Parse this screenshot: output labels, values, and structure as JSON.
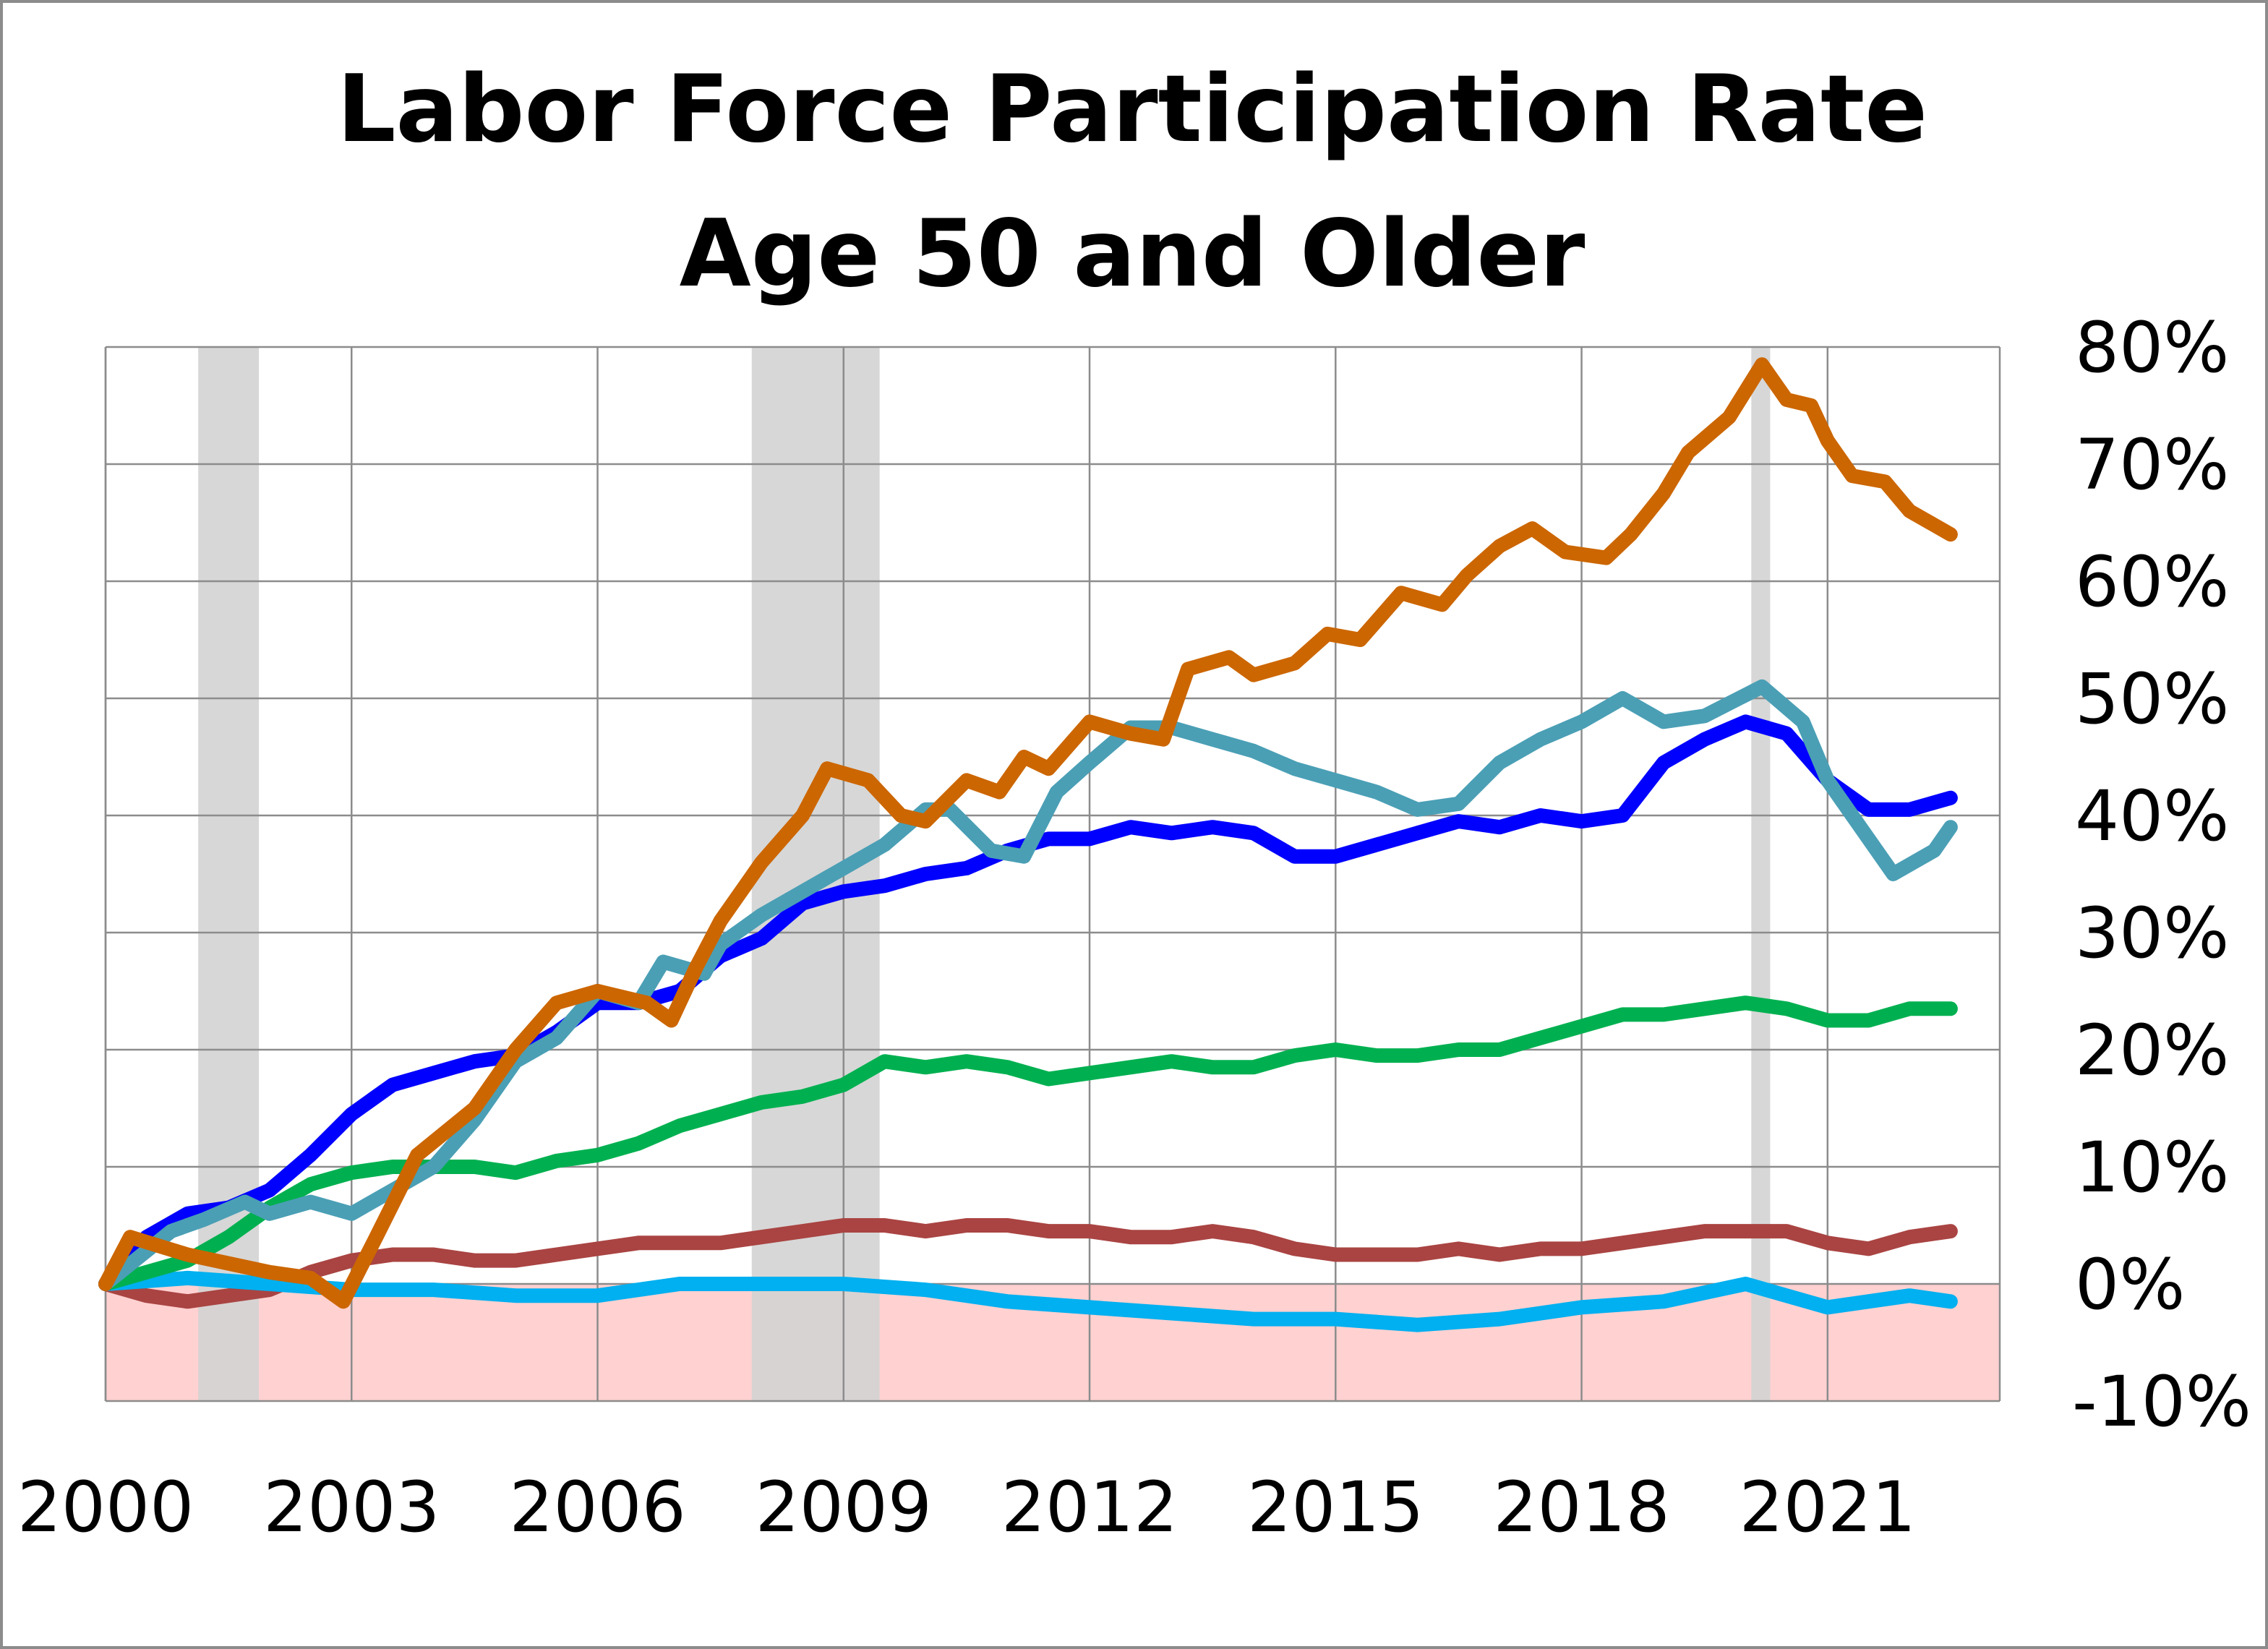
{
  "chart_data": {
    "type": "line",
    "title": [
      "Labor Force Participation Rate",
      "Age 50 and Older"
    ],
    "xlabel": "",
    "ylabel": "",
    "xlim": [
      2000,
      2023.1
    ],
    "ylim": [
      -10,
      80
    ],
    "x_ticks": [
      "2000",
      "2003",
      "2006",
      "2009",
      "2012",
      "2015",
      "2018",
      "2021"
    ],
    "y_ticks": [
      "-10%",
      "0%",
      "10%",
      "20%",
      "30%",
      "40%",
      "50%",
      "60%",
      "70%",
      "80%"
    ],
    "y_axis_side": "right",
    "grid": true,
    "legend": "none",
    "recession_bands": [
      [
        2001.13,
        2001.87
      ],
      [
        2007.88,
        2009.44
      ],
      [
        2020.07,
        2020.3
      ]
    ],
    "recession_color": "#d3d3d3",
    "negative_region_color": "#ffd1d1",
    "series": [
      {
        "color": "#a94442",
        "points": [
          [
            2000,
            0
          ],
          [
            2000.5,
            -1
          ],
          [
            2001,
            -1.5
          ],
          [
            2001.5,
            -1
          ],
          [
            2002,
            -0.5
          ],
          [
            2002.5,
            1
          ],
          [
            2003,
            2
          ],
          [
            2003.5,
            2.5
          ],
          [
            2004,
            2.5
          ],
          [
            2004.5,
            2
          ],
          [
            2005,
            2
          ],
          [
            2005.5,
            2.5
          ],
          [
            2006,
            3
          ],
          [
            2006.5,
            3.5
          ],
          [
            2007,
            3.5
          ],
          [
            2007.5,
            3.5
          ],
          [
            2008,
            4
          ],
          [
            2008.5,
            4.5
          ],
          [
            2009,
            5
          ],
          [
            2009.5,
            5
          ],
          [
            2010,
            4.5
          ],
          [
            2010.5,
            5
          ],
          [
            2011,
            5
          ],
          [
            2011.5,
            4.5
          ],
          [
            2012,
            4.5
          ],
          [
            2012.5,
            4
          ],
          [
            2013,
            4
          ],
          [
            2013.5,
            4.5
          ],
          [
            2014,
            4
          ],
          [
            2014.5,
            3
          ],
          [
            2015,
            2.5
          ],
          [
            2016,
            2.5
          ],
          [
            2016.5,
            3
          ],
          [
            2017,
            2.5
          ],
          [
            2017.5,
            3
          ],
          [
            2018,
            3
          ],
          [
            2018.5,
            3.5
          ],
          [
            2019,
            4
          ],
          [
            2019.5,
            4.5
          ],
          [
            2020,
            4.5
          ],
          [
            2020.5,
            4.5
          ],
          [
            2021,
            3.5
          ],
          [
            2021.5,
            3
          ],
          [
            2022,
            4
          ],
          [
            2022.5,
            4.5
          ]
        ]
      },
      {
        "color": "#00b0f0",
        "points": [
          [
            2000,
            0
          ],
          [
            2001,
            0.5
          ],
          [
            2002,
            0
          ],
          [
            2003,
            -0.5
          ],
          [
            2004,
            -0.5
          ],
          [
            2005,
            -1
          ],
          [
            2006,
            -1
          ],
          [
            2007,
            0
          ],
          [
            2008,
            0
          ],
          [
            2009,
            0
          ],
          [
            2010,
            -0.5
          ],
          [
            2011,
            -1.5
          ],
          [
            2012,
            -2
          ],
          [
            2013,
            -2.5
          ],
          [
            2014,
            -3
          ],
          [
            2015,
            -3
          ],
          [
            2016,
            -3.5
          ],
          [
            2017,
            -3
          ],
          [
            2018,
            -2
          ],
          [
            2019,
            -1.5
          ],
          [
            2020,
            0
          ],
          [
            2020.5,
            -1
          ],
          [
            2021,
            -2
          ],
          [
            2022,
            -1
          ],
          [
            2022.5,
            -1.5
          ]
        ]
      },
      {
        "color": "#00b050",
        "points": [
          [
            2000,
            0
          ],
          [
            2001,
            2
          ],
          [
            2001.5,
            4
          ],
          [
            2002,
            6.5
          ],
          [
            2002.5,
            8.5
          ],
          [
            2003,
            9.5
          ],
          [
            2003.5,
            10
          ],
          [
            2004,
            10
          ],
          [
            2004.5,
            10
          ],
          [
            2005,
            9.5
          ],
          [
            2005.5,
            10.5
          ],
          [
            2006,
            11
          ],
          [
            2006.5,
            12
          ],
          [
            2007,
            13.5
          ],
          [
            2007.5,
            14.5
          ],
          [
            2008,
            15.5
          ],
          [
            2008.5,
            16
          ],
          [
            2009,
            17
          ],
          [
            2009.5,
            19
          ],
          [
            2010,
            18.5
          ],
          [
            2010.5,
            19
          ],
          [
            2011,
            18.5
          ],
          [
            2011.5,
            17.5
          ],
          [
            2012,
            18
          ],
          [
            2012.5,
            18.5
          ],
          [
            2013,
            19
          ],
          [
            2013.5,
            18.5
          ],
          [
            2014,
            18.5
          ],
          [
            2014.5,
            19.5
          ],
          [
            2015,
            20
          ],
          [
            2015.5,
            19.5
          ],
          [
            2016,
            19.5
          ],
          [
            2016.5,
            20
          ],
          [
            2017,
            20
          ],
          [
            2017.5,
            21
          ],
          [
            2018,
            22
          ],
          [
            2018.5,
            23
          ],
          [
            2019,
            23
          ],
          [
            2019.5,
            23.5
          ],
          [
            2020,
            24
          ],
          [
            2020.5,
            23.5
          ],
          [
            2021,
            22.5
          ],
          [
            2021.5,
            22.5
          ],
          [
            2022,
            23.5
          ],
          [
            2022.5,
            23.5
          ]
        ]
      },
      {
        "color": "#0000ff",
        "points": [
          [
            2000,
            0
          ],
          [
            2000.5,
            4
          ],
          [
            2001,
            6
          ],
          [
            2001.5,
            6.5
          ],
          [
            2002,
            8
          ],
          [
            2002.5,
            11
          ],
          [
            2003,
            14.5
          ],
          [
            2003.5,
            17
          ],
          [
            2004,
            18
          ],
          [
            2004.5,
            19
          ],
          [
            2005,
            19.5
          ],
          [
            2005.5,
            21.5
          ],
          [
            2006,
            24
          ],
          [
            2006.5,
            24
          ],
          [
            2007,
            25
          ],
          [
            2007.5,
            28
          ],
          [
            2008,
            29.5
          ],
          [
            2008.5,
            32.5
          ],
          [
            2009,
            33.5
          ],
          [
            2009.5,
            34
          ],
          [
            2010,
            35
          ],
          [
            2010.5,
            35.5
          ],
          [
            2011,
            37
          ],
          [
            2011.5,
            38
          ],
          [
            2012,
            38
          ],
          [
            2012.5,
            39
          ],
          [
            2013,
            38.5
          ],
          [
            2013.5,
            39
          ],
          [
            2014,
            38.5
          ],
          [
            2014.5,
            36.5
          ],
          [
            2015,
            36.5
          ],
          [
            2015.5,
            37.5
          ],
          [
            2016,
            38.5
          ],
          [
            2016.5,
            39.5
          ],
          [
            2017,
            39
          ],
          [
            2017.5,
            40
          ],
          [
            2018,
            39.5
          ],
          [
            2018.5,
            40
          ],
          [
            2019,
            44.5
          ],
          [
            2019.5,
            46.5
          ],
          [
            2020,
            48
          ],
          [
            2020.5,
            47
          ],
          [
            2021,
            43
          ],
          [
            2021.5,
            40.5
          ],
          [
            2022,
            40.5
          ],
          [
            2022.5,
            41.5
          ]
        ]
      },
      {
        "color": "#4a9fb5",
        "points": [
          [
            2000,
            0
          ],
          [
            2000.8,
            4.5
          ],
          [
            2001.2,
            5.5
          ],
          [
            2001.7,
            7
          ],
          [
            2002,
            6
          ],
          [
            2002.5,
            7
          ],
          [
            2003,
            6
          ],
          [
            2003.5,
            8
          ],
          [
            2004,
            10
          ],
          [
            2004.5,
            14
          ],
          [
            2005,
            19
          ],
          [
            2005.5,
            21
          ],
          [
            2006,
            25
          ],
          [
            2006.5,
            24
          ],
          [
            2006.8,
            27.5
          ],
          [
            2007.3,
            26.5
          ],
          [
            2007.5,
            29
          ],
          [
            2008,
            31.5
          ],
          [
            2008.5,
            33.5
          ],
          [
            2009,
            35.5
          ],
          [
            2009.5,
            37.5
          ],
          [
            2010,
            40.5
          ],
          [
            2010.3,
            40.5
          ],
          [
            2010.8,
            37
          ],
          [
            2011.2,
            36.5
          ],
          [
            2011.6,
            42
          ],
          [
            2012,
            44.5
          ],
          [
            2012.5,
            47.5
          ],
          [
            2013,
            47.5
          ],
          [
            2013.5,
            46.5
          ],
          [
            2014,
            45.5
          ],
          [
            2014.5,
            44
          ],
          [
            2015,
            43
          ],
          [
            2015.5,
            42
          ],
          [
            2016,
            40.5
          ],
          [
            2016.5,
            41
          ],
          [
            2017,
            44.5
          ],
          [
            2017.5,
            46.5
          ],
          [
            2018,
            48
          ],
          [
            2018.5,
            50
          ],
          [
            2019,
            48
          ],
          [
            2019.5,
            48.5
          ],
          [
            2020.2,
            51
          ],
          [
            2020.7,
            48
          ],
          [
            2021,
            43
          ],
          [
            2021.3,
            40
          ],
          [
            2021.8,
            35
          ],
          [
            2022.3,
            37
          ],
          [
            2022.5,
            39
          ]
        ]
      },
      {
        "color": "#cc6600",
        "points": [
          [
            2000,
            0
          ],
          [
            2000.3,
            4
          ],
          [
            2001,
            2.5
          ],
          [
            2002,
            1
          ],
          [
            2002.5,
            0.5
          ],
          [
            2002.9,
            -1.5
          ],
          [
            2003.3,
            4
          ],
          [
            2003.8,
            11
          ],
          [
            2004.5,
            15
          ],
          [
            2005,
            20
          ],
          [
            2005.5,
            24
          ],
          [
            2006,
            25
          ],
          [
            2006.6,
            24
          ],
          [
            2006.9,
            22.5
          ],
          [
            2007.2,
            27
          ],
          [
            2007.5,
            31
          ],
          [
            2008,
            36
          ],
          [
            2008.5,
            40
          ],
          [
            2008.8,
            44
          ],
          [
            2009.3,
            43
          ],
          [
            2009.7,
            40
          ],
          [
            2010,
            39.5
          ],
          [
            2010.5,
            43
          ],
          [
            2010.9,
            42
          ],
          [
            2011.2,
            45
          ],
          [
            2011.5,
            44
          ],
          [
            2012,
            48
          ],
          [
            2012.5,
            47
          ],
          [
            2012.9,
            46.5
          ],
          [
            2013.2,
            52.5
          ],
          [
            2013.7,
            53.5
          ],
          [
            2014,
            52
          ],
          [
            2014.5,
            53
          ],
          [
            2014.9,
            55.5
          ],
          [
            2015.3,
            55
          ],
          [
            2015.8,
            59
          ],
          [
            2016.3,
            58
          ],
          [
            2016.6,
            60.5
          ],
          [
            2017,
            63
          ],
          [
            2017.4,
            64.5
          ],
          [
            2017.8,
            62.5
          ],
          [
            2018.3,
            62
          ],
          [
            2018.6,
            64
          ],
          [
            2019,
            67.5
          ],
          [
            2019.3,
            71
          ],
          [
            2019.8,
            74
          ],
          [
            2020.2,
            78.5
          ],
          [
            2020.5,
            75.5
          ],
          [
            2020.8,
            75
          ],
          [
            2021,
            72
          ],
          [
            2021.3,
            69
          ],
          [
            2021.7,
            68.5
          ],
          [
            2022,
            66
          ],
          [
            2022.5,
            64
          ]
        ]
      }
    ]
  }
}
